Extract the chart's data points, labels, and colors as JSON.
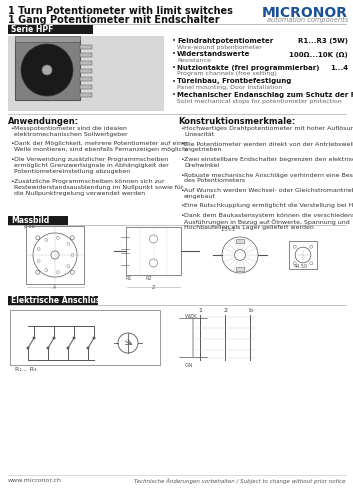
{
  "title_line1": "1 Turn Potentiometer with limit switches",
  "title_line2": "1 Gang Potentiometer mit Endschalter",
  "brand": "MICRONOR",
  "brand_sub": "automation components",
  "serie_label": "Serie HPF",
  "specs": [
    {
      "label": "Feindrahtpotentiometer",
      "sub": "Wire-wound potentiometer",
      "val": "R1...R3 (5W)"
    },
    {
      "label": "Widerstandswerte",
      "sub": "Resistance",
      "val": "100Ω...10K (Ω)"
    },
    {
      "label": "Nutzlontakte (frei programmierbar)",
      "sub": "Program channels (free setting)",
      "val": "1...4"
    },
    {
      "label": "Türeinbau, Frontbefestigung",
      "sub": "Panel mounting, Door installation",
      "val": ""
    },
    {
      "label": "Mechanischer Endanschlag zum Schutz der Potentiometer",
      "sub": "Solid mechanical stops for potentiometer protection",
      "val": ""
    }
  ],
  "anwendungen_title": "Anwendungen:",
  "anwendungen": [
    "Messpotentiometer sind die idealen\nelektromechanischen Sollwertgeber",
    "Dank der Möglichkeit, mehrere Potentiometer auf einer\nWelle montieren, sind ebenfalls Fernanzeiigen möglich",
    "Die Verwendung zusätzlicher Programmscheiben\nermöglicht Grenzwertsignale in Abhängigkeit der\nPotentiometereinstellung abzugeben",
    "Zusätzliche Programmscheiben können sich zur\nRestewiderstandsausblendung im Nullpunkt sowie für\ndie Nullpunktregelung verwendet werden"
  ],
  "konstruktion_title": "Konstruktionsmerkmale:",
  "konstruktion": [
    "Hochwertiges Drahtpotentiometer mit hoher Auflösung und\nLinearität",
    "Die Potentiometer werden direkt von der Antriebswelle\nangetrieben",
    "Zwei einstellbare Endschalter begrenzen den elektrischen\nDrehwinkel",
    "Robuste mechanische Anschläge verhindern eine Beschädigung\ndes Potentiometers",
    "Auf Wunsch werden Wechsel- oder Gleichstromantrieb\neingebaut",
    "Eine Rutschkupplung ermöglicht die Verstellung bei Handantrieb",
    "Dank dem Baukastensystem können die verschiedensten\nAusführungen in Bezug auf Ölnwerte, Spannung und\nHochbaufeilen als Lager geliefert werden"
  ],
  "massbild_title": "Massbild",
  "elektr_title": "Elektrische Anschlüsse",
  "footer_left": "www.micronor.ch",
  "footer_right": "Technische Änderungen vorbehalten / Subject to change without prior notice",
  "bg_color": "#ffffff",
  "header_line_color": "#cccccc",
  "serie_bg": "#1a1a1a",
  "serie_fg": "#ffffff",
  "section_line_color": "#aaaaaa",
  "blue_color": "#1a5096",
  "text_color": "#111111",
  "gray_text": "#444444",
  "bullet": "•"
}
